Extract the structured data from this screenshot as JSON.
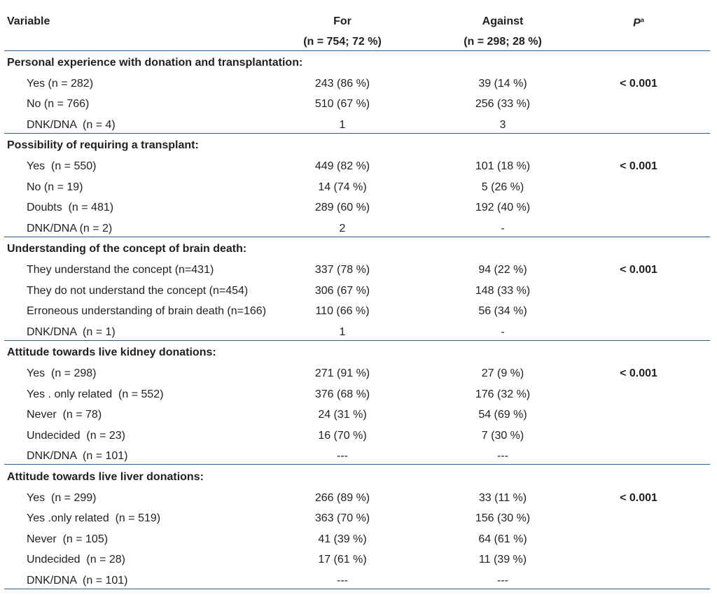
{
  "header": {
    "variable": "Variable",
    "for": "For",
    "against": "Against",
    "p": "P",
    "p_sup": "a",
    "for_n": "(n = 754; 72 %)",
    "against_n": "(n = 298; 28 %)"
  },
  "sections": [
    {
      "title": "Personal experience with donation and transplantation:",
      "rows": [
        {
          "label": "Yes (n = 282)",
          "for": "243 (86 %)",
          "against": "39 (14 %)",
          "p": "< 0.001"
        },
        {
          "label": "No (n = 766)",
          "for": "510 (67 %)",
          "against": "256 (33 %)"
        },
        {
          "label": "DNK/DNA  (n = 4)",
          "for": "1",
          "against": "3"
        }
      ]
    },
    {
      "title": "Possibility of requiring a transplant:",
      "rows": [
        {
          "label": "Yes  (n = 550)",
          "for": "449 (82 %)",
          "against": "101 (18 %)",
          "p": "< 0.001"
        },
        {
          "label": "No (n = 19)",
          "for": "14 (74 %)",
          "against": "5 (26 %)"
        },
        {
          "label": "Doubts  (n = 481)",
          "for": "289 (60 %)",
          "against": "192 (40 %)"
        },
        {
          "label": "DNK/DNA (n = 2)",
          "for": "2",
          "against": "-"
        }
      ]
    },
    {
      "title": "Understanding of the concept of brain death:",
      "rows": [
        {
          "label": "They understand the concept (n=431)",
          "for": "337 (78 %)",
          "against": "94 (22 %)",
          "p": "< 0.001"
        },
        {
          "label": "They do not understand the concept (n=454)",
          "for": "306 (67 %)",
          "against": "148 (33 %)"
        },
        {
          "label": "Erroneous understanding of brain death (n=166)",
          "for": "110 (66 %)",
          "against": "56 (34 %)"
        },
        {
          "label": "DNK/DNA  (n = 1)",
          "for": "1",
          "against": "-"
        }
      ]
    },
    {
      "title": "Attitude towards live kidney donations:",
      "rows": [
        {
          "label": "Yes  (n = 298)",
          "for": "271 (91 %)",
          "against": "27 (9 %)",
          "p": "< 0.001"
        },
        {
          "label": "Yes . only related  (n = 552)",
          "for": "376 (68 %)",
          "against": "176 (32 %)"
        },
        {
          "label": "Never  (n = 78)",
          "for": "24 (31 %)",
          "against": "54 (69 %)"
        },
        {
          "label": "Undecided  (n = 23)",
          "for": "16 (70 %)",
          "against": "7 (30 %)"
        },
        {
          "label": "DNK/DNA  (n = 101)",
          "for": "---",
          "against": "---"
        }
      ]
    },
    {
      "title": "Attitude towards live liver donations:",
      "rows": [
        {
          "label": "Yes  (n = 299)",
          "for": "266 (89 %)",
          "against": "33 (11 %)",
          "p": "< 0.001"
        },
        {
          "label": "Yes .only related  (n = 519)",
          "for": "363 (70 %)",
          "against": "156 (30 %)"
        },
        {
          "label": "Never  (n = 105)",
          "for": "41 (39 %)",
          "against": "64 (61 %)"
        },
        {
          "label": "Undecided  (n = 28)",
          "for": "17 (61 %)",
          "against": "11 (39 %)"
        },
        {
          "label": "DNK/DNA  (n = 101)",
          "for": "---",
          "against": "---"
        }
      ]
    }
  ]
}
